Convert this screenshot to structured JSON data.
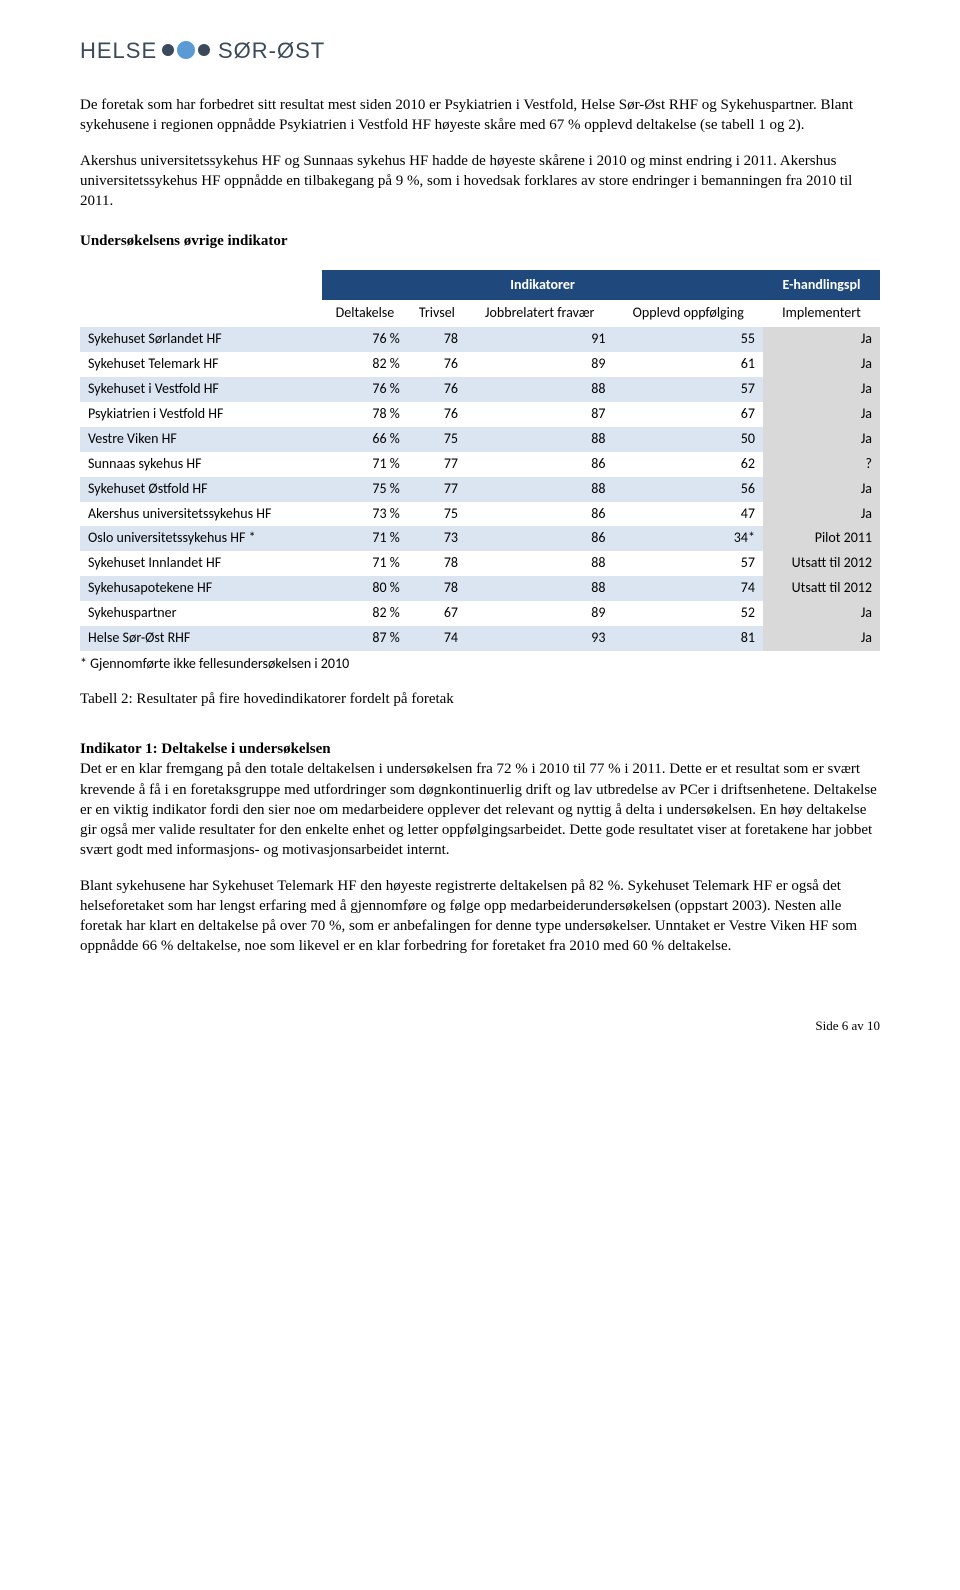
{
  "logo": {
    "text_left": "HELSE",
    "text_right": "SØR-ØST",
    "color_text": "#3a4a5a",
    "color_dot1": "#3a4a5a",
    "color_dot2": "#5a9bd5",
    "color_dot3": "#3a4a5a"
  },
  "para1": "De foretak som har forbedret sitt resultat mest siden 2010 er Psykiatrien i Vestfold, Helse Sør-Øst RHF og Sykehuspartner. Blant sykehusene i regionen oppnådde Psykiatrien i Vestfold HF høyeste skåre med 67 % opplevd deltakelse (se tabell 1 og 2).",
  "para2": "Akershus universitetssykehus HF og Sunnaas sykehus HF hadde de høyeste skårene i 2010 og minst endring i 2011. Akershus universitetssykehus HF oppnådde en tilbakegang på 9 %, som i hovedsak forklares av store endringer i bemanningen fra 2010 til 2011.",
  "section1_heading": "Undersøkelsens øvrige indikator",
  "table": {
    "header": {
      "indikatorer": "Indikatorer",
      "ehandlingspl": "E-handlingspl",
      "deltakelse": "Deltakelse",
      "trivsel": "Trivsel",
      "jobbrelatert": "Jobbrelatert fravær",
      "opplevd": "Opplevd oppfølging",
      "implementert": "Implementert"
    },
    "rows": [
      {
        "name": "Sykehuset Sørlandet HF",
        "d": "76 %",
        "t": "78",
        "j": "91",
        "o": "55",
        "i": "Ja"
      },
      {
        "name": "Sykehuset Telemark HF",
        "d": "82 %",
        "t": "76",
        "j": "89",
        "o": "61",
        "i": "Ja"
      },
      {
        "name": "Sykehuset i Vestfold HF",
        "d": "76 %",
        "t": "76",
        "j": "88",
        "o": "57",
        "i": "Ja"
      },
      {
        "name": "Psykiatrien i Vestfold HF",
        "d": "78 %",
        "t": "76",
        "j": "87",
        "o": "67",
        "i": "Ja"
      },
      {
        "name": "Vestre Viken HF",
        "d": "66 %",
        "t": "75",
        "j": "88",
        "o": "50",
        "i": "Ja"
      },
      {
        "name": "Sunnaas sykehus HF",
        "d": "71 %",
        "t": "77",
        "j": "86",
        "o": "62",
        "i": "?"
      },
      {
        "name": "Sykehuset Østfold HF",
        "d": "75 %",
        "t": "77",
        "j": "88",
        "o": "56",
        "i": "Ja"
      },
      {
        "name": "Akershus universitetssykehus HF",
        "d": "73 %",
        "t": "75",
        "j": "86",
        "o": "47",
        "i": "Ja"
      },
      {
        "name": "Oslo universitetssykehus HF *",
        "d": "71 %",
        "t": "73",
        "j": "86",
        "o": "34*",
        "i": "Pilot 2011"
      },
      {
        "name": "Sykehuset Innlandet HF",
        "d": "71 %",
        "t": "78",
        "j": "88",
        "o": "57",
        "i": "Utsatt til 2012"
      },
      {
        "name": "Sykehusapotekene HF",
        "d": "80 %",
        "t": "78",
        "j": "88",
        "o": "74",
        "i": "Utsatt til 2012"
      },
      {
        "name": "Sykehuspartner",
        "d": "82 %",
        "t": "67",
        "j": "89",
        "o": "52",
        "i": "Ja"
      },
      {
        "name": "Helse Sør-Øst RHF",
        "d": "87 %",
        "t": "74",
        "j": "93",
        "o": "81",
        "i": "Ja"
      }
    ],
    "footnote": "* Gjennomførte ikke fellesundersøkelsen i 2010",
    "caption": "Tabell 2: Resultater på fire hovedindikatorer fordelt på foretak"
  },
  "indicator_heading": "Indikator 1: Deltakelse i undersøkelsen",
  "para3": "Det er en klar fremgang på den totale deltakelsen i undersøkelsen fra 72 % i 2010 til 77 % i 2011. Dette er et resultat som er svært krevende å få i en foretaksgruppe med utfordringer som døgnkontinuerlig drift og lav utbredelse av PCer i driftsenhetene. Deltakelse er en viktig indikator fordi den sier noe om medarbeidere opplever det relevant og nyttig å delta i undersøkelsen. En høy deltakelse gir også mer valide resultater for den enkelte enhet og letter oppfølgingsarbeidet. Dette gode resultatet viser at foretakene har jobbet svært godt med informasjons- og motivasjonsarbeidet internt.",
  "para4": "Blant sykehusene har Sykehuset Telemark HF den høyeste registrerte deltakelsen på 82 %. Sykehuset Telemark HF er også det helseforetaket som har lengst erfaring med å gjennomføre og følge opp medarbeiderundersøkelsen (oppstart 2003). Nesten alle foretak har klart en deltakelse på over 70 %, som er anbefalingen for denne type undersøkelser. Unntaket er Vestre Viken HF som oppnådde 66 % deltakelse, noe som likevel er en klar forbedring for foretaket fra 2010 med 60 % deltakelse.",
  "footer": "Side 6 av 10"
}
